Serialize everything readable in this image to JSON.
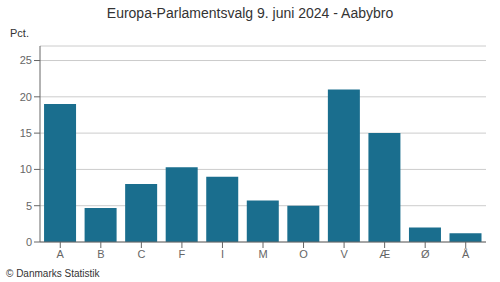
{
  "chart_data": {
    "type": "bar",
    "title": "Europa-Parlamentsvalg 9. juni 2024 - Aabybro",
    "categories": [
      "A",
      "B",
      "C",
      "F",
      "I",
      "M",
      "O",
      "V",
      "Æ",
      "Ø",
      "Å"
    ],
    "values": [
      19.0,
      4.7,
      8.0,
      10.3,
      9.0,
      5.7,
      5.0,
      21.0,
      15.0,
      2.0,
      1.2
    ],
    "color": "#1a6e8e",
    "ylabel": "Pct.",
    "ylim": [
      0,
      27
    ],
    "yticks": [
      0,
      5,
      10,
      15,
      20,
      25
    ],
    "grid": true,
    "annotations": [
      "© Danmarks Statistik"
    ]
  }
}
